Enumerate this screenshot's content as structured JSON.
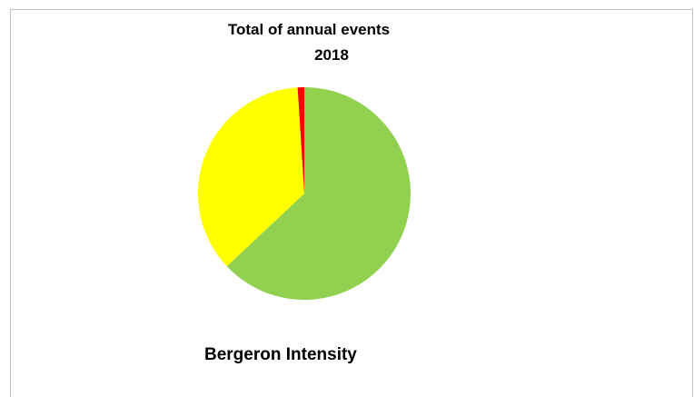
{
  "chart_data": {
    "type": "pie",
    "title_line1": "Total of annual events",
    "title_line2": "2018",
    "subtitle": "Bergeron Intensity",
    "slices": [
      {
        "value": 63,
        "color": "#92d050"
      },
      {
        "value": 36,
        "color": "#ffff00"
      },
      {
        "value": 1,
        "color": "#ff0000"
      }
    ]
  }
}
